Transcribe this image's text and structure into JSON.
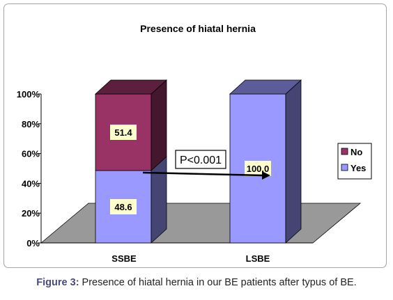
{
  "chart_data": {
    "type": "bar",
    "stacked": true,
    "three_d": true,
    "title": "Presence of hiatal hernia",
    "categories": [
      "SSBE",
      "LSBE"
    ],
    "series": [
      {
        "name": "Yes",
        "values": [
          48.6,
          100.0
        ],
        "labels": [
          "48.6",
          "100.0"
        ],
        "color": "#9999ff"
      },
      {
        "name": "No",
        "values": [
          51.4,
          0
        ],
        "labels": [
          "51.4",
          ""
        ],
        "color": "#993366"
      }
    ],
    "ylim": [
      0,
      100
    ],
    "yticks": [
      "0%",
      "20%",
      "40%",
      "60%",
      "80%",
      "100%"
    ],
    "annotation": "P<0.001",
    "legend_position": "right",
    "floor_color": "#999999"
  },
  "caption": {
    "label": "Figure 3:",
    "text": " Presence of hiatal hernia in our BE patients after typus of BE."
  }
}
